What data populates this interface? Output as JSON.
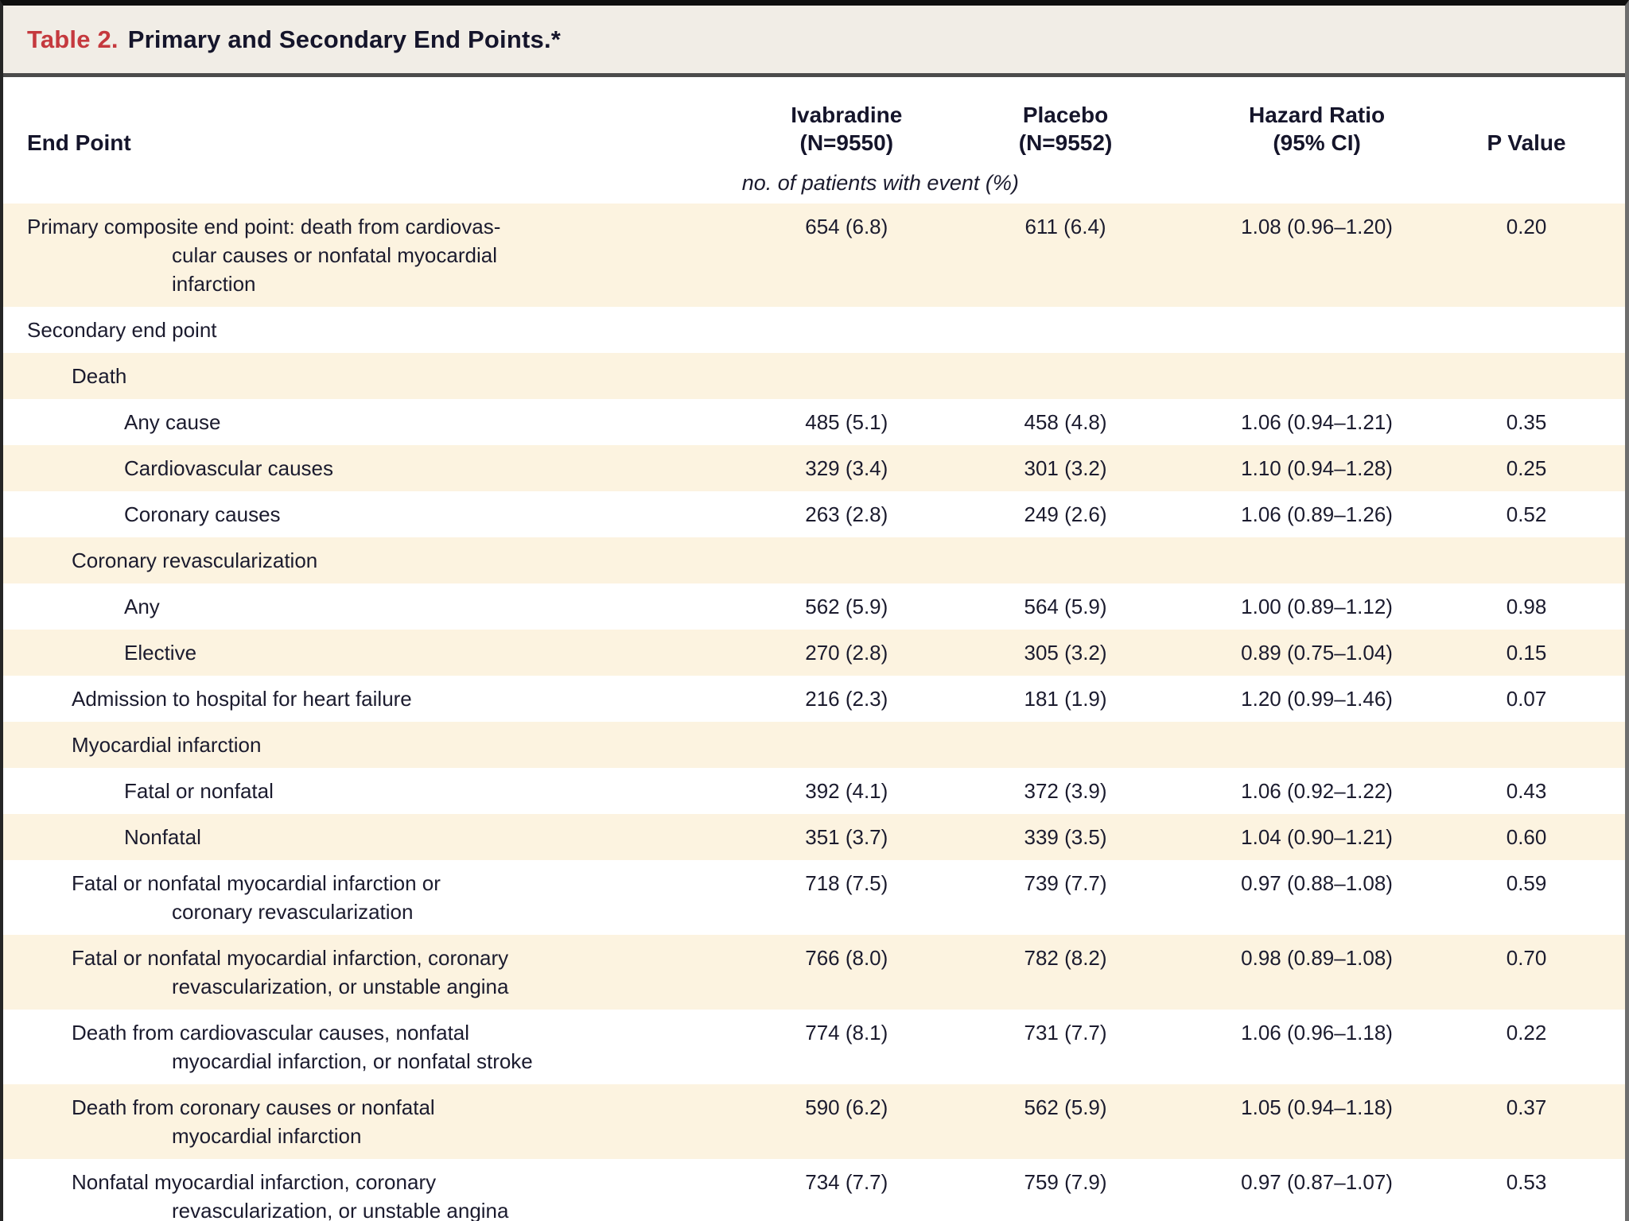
{
  "table": {
    "title_label": "Table 2.",
    "title_text": "Primary and Secondary End Points.*",
    "units_note": "no. of patients with event (%)",
    "columns": [
      {
        "id": "endpoint",
        "label": "End Point"
      },
      {
        "id": "ivabradine",
        "label": "Ivabradine\n(N=9550)"
      },
      {
        "id": "placebo",
        "label": "Placebo\n(N=9552)"
      },
      {
        "id": "hazard_ratio",
        "label": "Hazard Ratio\n(95% CI)"
      },
      {
        "id": "p_value",
        "label": "P Value"
      }
    ],
    "rows": [
      {
        "label": "Primary composite end point: death from cardiovas-\ncular causes or nonfatal myocardial\ninfarction",
        "indent": 0,
        "shaded": true,
        "ivabradine": "654 (6.8)",
        "placebo": "611 (6.4)",
        "hazard_ratio": "1.08 (0.96–1.20)",
        "p_value": "0.20"
      },
      {
        "label": "Secondary end point",
        "indent": 0,
        "shaded": false,
        "ivabradine": "",
        "placebo": "",
        "hazard_ratio": "",
        "p_value": ""
      },
      {
        "label": "Death",
        "indent": 1,
        "shaded": true,
        "ivabradine": "",
        "placebo": "",
        "hazard_ratio": "",
        "p_value": ""
      },
      {
        "label": "Any cause",
        "indent": 2,
        "shaded": false,
        "ivabradine": "485 (5.1)",
        "placebo": "458 (4.8)",
        "hazard_ratio": "1.06 (0.94–1.21)",
        "p_value": "0.35"
      },
      {
        "label": "Cardiovascular causes",
        "indent": 2,
        "shaded": true,
        "ivabradine": "329 (3.4)",
        "placebo": "301 (3.2)",
        "hazard_ratio": "1.10 (0.94–1.28)",
        "p_value": "0.25"
      },
      {
        "label": "Coronary causes",
        "indent": 2,
        "shaded": false,
        "ivabradine": "263 (2.8)",
        "placebo": "249 (2.6)",
        "hazard_ratio": "1.06 (0.89–1.26)",
        "p_value": "0.52"
      },
      {
        "label": "Coronary revascularization",
        "indent": 1,
        "shaded": true,
        "ivabradine": "",
        "placebo": "",
        "hazard_ratio": "",
        "p_value": ""
      },
      {
        "label": "Any",
        "indent": 2,
        "shaded": false,
        "ivabradine": "562 (5.9)",
        "placebo": "564 (5.9)",
        "hazard_ratio": "1.00 (0.89–1.12)",
        "p_value": "0.98"
      },
      {
        "label": "Elective",
        "indent": 2,
        "shaded": true,
        "ivabradine": "270 (2.8)",
        "placebo": "305 (3.2)",
        "hazard_ratio": "0.89 (0.75–1.04)",
        "p_value": "0.15"
      },
      {
        "label": "Admission to hospital for heart failure",
        "indent": 1,
        "shaded": false,
        "ivabradine": "216 (2.3)",
        "placebo": "181 (1.9)",
        "hazard_ratio": "1.20 (0.99–1.46)",
        "p_value": "0.07"
      },
      {
        "label": "Myocardial infarction",
        "indent": 1,
        "shaded": true,
        "ivabradine": "",
        "placebo": "",
        "hazard_ratio": "",
        "p_value": ""
      },
      {
        "label": "Fatal or nonfatal",
        "indent": 2,
        "shaded": false,
        "ivabradine": "392 (4.1)",
        "placebo": "372 (3.9)",
        "hazard_ratio": "1.06 (0.92–1.22)",
        "p_value": "0.43"
      },
      {
        "label": "Nonfatal",
        "indent": 2,
        "shaded": true,
        "ivabradine": "351 (3.7)",
        "placebo": "339 (3.5)",
        "hazard_ratio": "1.04 (0.90–1.21)",
        "p_value": "0.60"
      },
      {
        "label": "Fatal or nonfatal myocardial infarction or\ncoronary revascularization",
        "indent": 1,
        "shaded": false,
        "ivabradine": "718 (7.5)",
        "placebo": "739 (7.7)",
        "hazard_ratio": "0.97 (0.88–1.08)",
        "p_value": "0.59"
      },
      {
        "label": "Fatal or nonfatal myocardial infarction, coronary\nrevascularization, or unstable angina",
        "indent": 1,
        "shaded": true,
        "ivabradine": "766 (8.0)",
        "placebo": "782 (8.2)",
        "hazard_ratio": "0.98 (0.89–1.08)",
        "p_value": "0.70"
      },
      {
        "label": "Death from cardiovascular causes, nonfatal\nmyocardial infarction, or nonfatal stroke",
        "indent": 1,
        "shaded": false,
        "ivabradine": "774 (8.1)",
        "placebo": "731 (7.7)",
        "hazard_ratio": "1.06 (0.96–1.18)",
        "p_value": "0.22"
      },
      {
        "label": "Death from coronary causes or nonfatal\nmyocardial infarction",
        "indent": 1,
        "shaded": true,
        "ivabradine": "590 (6.2)",
        "placebo": "562 (5.9)",
        "hazard_ratio": "1.05 (0.94–1.18)",
        "p_value": "0.37"
      },
      {
        "label": "Nonfatal myocardial infarction, coronary\nrevascularization, or unstable angina",
        "indent": 1,
        "shaded": false,
        "ivabradine": "734 (7.7)",
        "placebo": "759 (7.9)",
        "hazard_ratio": "0.97 (0.87–1.07)",
        "p_value": "0.53"
      }
    ]
  },
  "colors": {
    "accent_red": "#c5393e",
    "row_shade": "#fcf3e0",
    "title_bar_bg": "#f1ede6",
    "text": "#1b1b2e",
    "border_dark": "#0f0f0f",
    "border_rule": "#4b4b4b"
  }
}
